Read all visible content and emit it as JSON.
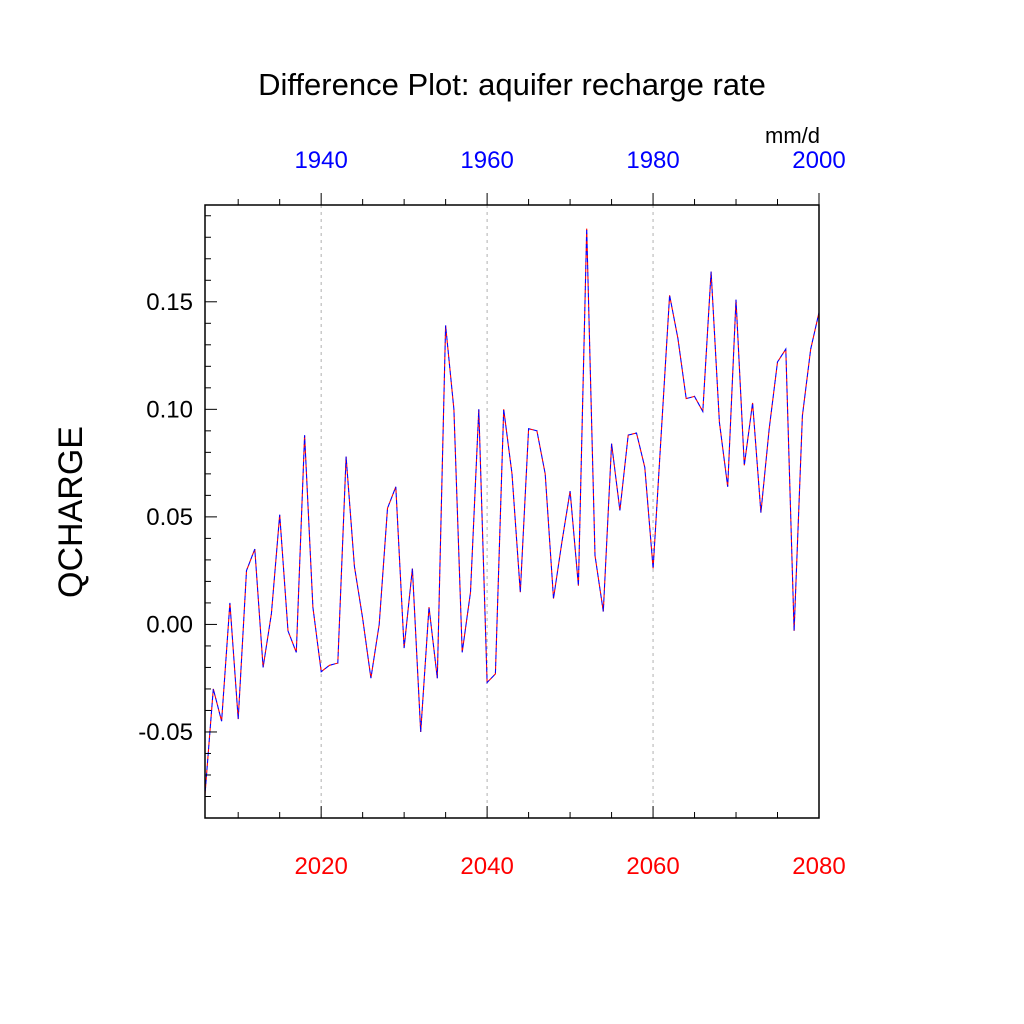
{
  "chart_data": {
    "type": "line",
    "title": "Difference Plot: aquifer recharge rate",
    "ylabel": "QCHARGE",
    "units": "mm/d",
    "xlim": [
      2006,
      2080
    ],
    "ylim": [
      -0.09,
      0.195
    ],
    "y_ticks": [
      -0.05,
      0.0,
      0.05,
      0.1,
      0.15
    ],
    "y_tick_labels": [
      "-0.05",
      "0.00",
      "0.05",
      "0.10",
      "0.15"
    ],
    "bottom_axis": {
      "color": "#ff0000",
      "ticks": [
        2020,
        2040,
        2060,
        2080
      ],
      "labels": [
        "2020",
        "2040",
        "2060",
        "2080"
      ]
    },
    "top_axis": {
      "color": "#0000ff",
      "offset_years": -80,
      "ticks": [
        1940,
        1960,
        1980,
        2000
      ],
      "labels": [
        "1940",
        "1960",
        "1980",
        "2000"
      ]
    },
    "series": [
      {
        "name": "bottom-axis series",
        "color": "#ff0000",
        "style": "dashed",
        "x": [
          2006,
          2007,
          2008,
          2009,
          2010,
          2011,
          2012,
          2013,
          2014,
          2015,
          2016,
          2017,
          2018,
          2019,
          2020,
          2021,
          2022,
          2023,
          2024,
          2025,
          2026,
          2027,
          2028,
          2029,
          2030,
          2031,
          2032,
          2033,
          2034,
          2035,
          2036,
          2037,
          2038,
          2039,
          2040,
          2041,
          2042,
          2043,
          2044,
          2045,
          2046,
          2047,
          2048,
          2049,
          2050,
          2051,
          2052,
          2053,
          2054,
          2055,
          2056,
          2057,
          2058,
          2059,
          2060,
          2061,
          2062,
          2063,
          2064,
          2065,
          2066,
          2067,
          2068,
          2069,
          2070,
          2071,
          2072,
          2073,
          2074,
          2075,
          2076,
          2077,
          2078,
          2079,
          2080
        ],
        "values": [
          -0.079,
          -0.03,
          -0.045,
          0.01,
          -0.044,
          0.025,
          0.035,
          -0.02,
          0.005,
          0.051,
          -0.003,
          -0.013,
          0.088,
          0.008,
          -0.022,
          -0.019,
          -0.018,
          0.078,
          0.027,
          0.003,
          -0.025,
          0.0,
          0.054,
          0.064,
          -0.011,
          0.026,
          -0.05,
          0.008,
          -0.025,
          0.139,
          0.1,
          -0.013,
          0.015,
          0.1,
          -0.027,
          -0.023,
          0.1,
          0.07,
          0.015,
          0.091,
          0.09,
          0.07,
          0.012,
          0.038,
          0.062,
          0.018,
          0.184,
          0.032,
          0.006,
          0.084,
          0.053,
          0.088,
          0.089,
          0.073,
          0.026,
          0.09,
          0.153,
          0.133,
          0.105,
          0.106,
          0.099,
          0.164,
          0.094,
          0.064,
          0.151,
          0.074,
          0.103,
          0.052,
          0.091,
          0.122,
          0.128,
          -0.003,
          0.097,
          0.128,
          0.145
        ]
      },
      {
        "name": "top-axis series",
        "color": "#0000ff",
        "style": "dashed",
        "x": [
          1926,
          1927,
          1928,
          1929,
          1930,
          1931,
          1932,
          1933,
          1934,
          1935,
          1936,
          1937,
          1938,
          1939,
          1940,
          1941,
          1942,
          1943,
          1944,
          1945,
          1946,
          1947,
          1948,
          1949,
          1950,
          1951,
          1952,
          1953,
          1954,
          1955,
          1956,
          1957,
          1958,
          1959,
          1960,
          1961,
          1962,
          1963,
          1964,
          1965,
          1966,
          1967,
          1968,
          1969,
          1970,
          1971,
          1972,
          1973,
          1974,
          1975,
          1976,
          1977,
          1978,
          1979,
          1980,
          1981,
          1982,
          1983,
          1984,
          1985,
          1986,
          1987,
          1988,
          1989,
          1990,
          1991,
          1992,
          1993,
          1994,
          1995,
          1996,
          1997,
          1998,
          1999,
          2000
        ],
        "values": [
          -0.079,
          -0.03,
          -0.045,
          0.01,
          -0.044,
          0.025,
          0.035,
          -0.02,
          0.005,
          0.051,
          -0.003,
          -0.013,
          0.088,
          0.008,
          -0.022,
          -0.019,
          -0.018,
          0.078,
          0.027,
          0.003,
          -0.025,
          0.0,
          0.054,
          0.064,
          -0.011,
          0.026,
          -0.05,
          0.008,
          -0.025,
          0.139,
          0.1,
          -0.013,
          0.015,
          0.1,
          -0.027,
          -0.023,
          0.1,
          0.07,
          0.015,
          0.091,
          0.09,
          0.07,
          0.012,
          0.038,
          0.062,
          0.018,
          0.184,
          0.032,
          0.006,
          0.084,
          0.053,
          0.088,
          0.089,
          0.073,
          0.026,
          0.09,
          0.153,
          0.133,
          0.105,
          0.106,
          0.099,
          0.164,
          0.094,
          0.064,
          0.151,
          0.074,
          0.103,
          0.052,
          0.091,
          0.122,
          0.128,
          -0.003,
          0.097,
          0.128,
          0.145
        ]
      }
    ]
  }
}
